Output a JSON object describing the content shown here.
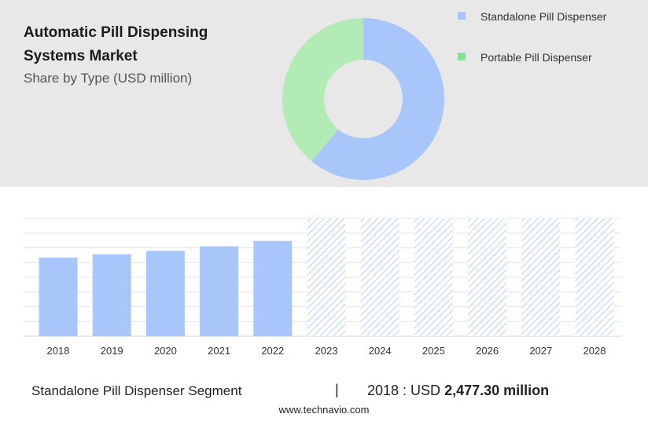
{
  "header": {
    "title": "Automatic Pill Dispensing Systems Market",
    "subtitle": "Share by Type (USD million)"
  },
  "legend": [
    {
      "label": "Standalone Pill Dispenser",
      "color": "#a9c6fb"
    },
    {
      "label": "Portable Pill Dispenser",
      "color": "#b2ebb6"
    }
  ],
  "colors": {
    "top_panel": "#e8e8e8",
    "bar": "#a9c6fb",
    "forecast_hatch": "#a9c6fb",
    "legend_swatch_standalone": "#a9c6fb",
    "legend_swatch_portable": "#86e28f",
    "grid": "#dcdcdc"
  },
  "footer": {
    "segment": "Standalone Pill Dispenser Segment",
    "divider": "|",
    "value_prefix": "2018 : USD ",
    "value_bold": "2,477.30 million",
    "url": "www.technavio.com"
  },
  "chart_data": [
    {
      "type": "pie",
      "variant": "donut",
      "labels": [
        "Standalone Pill Dispenser",
        "Portable Pill Dispenser"
      ],
      "values": [
        61,
        39
      ],
      "colors": [
        "#a9c6fb",
        "#b2ebb6"
      ]
    },
    {
      "type": "bar",
      "categories": [
        "2018",
        "2019",
        "2020",
        "2021",
        "2022",
        "2023",
        "2024",
        "2025",
        "2026",
        "2027",
        "2028"
      ],
      "values": [
        2477.3,
        2580,
        2690,
        2830,
        3000,
        3710,
        3710,
        3710,
        3710,
        3710,
        3710
      ],
      "forecast": [
        false,
        false,
        false,
        false,
        false,
        true,
        true,
        true,
        true,
        true,
        true
      ],
      "ylim": [
        0,
        3710
      ],
      "grid": true
    }
  ]
}
